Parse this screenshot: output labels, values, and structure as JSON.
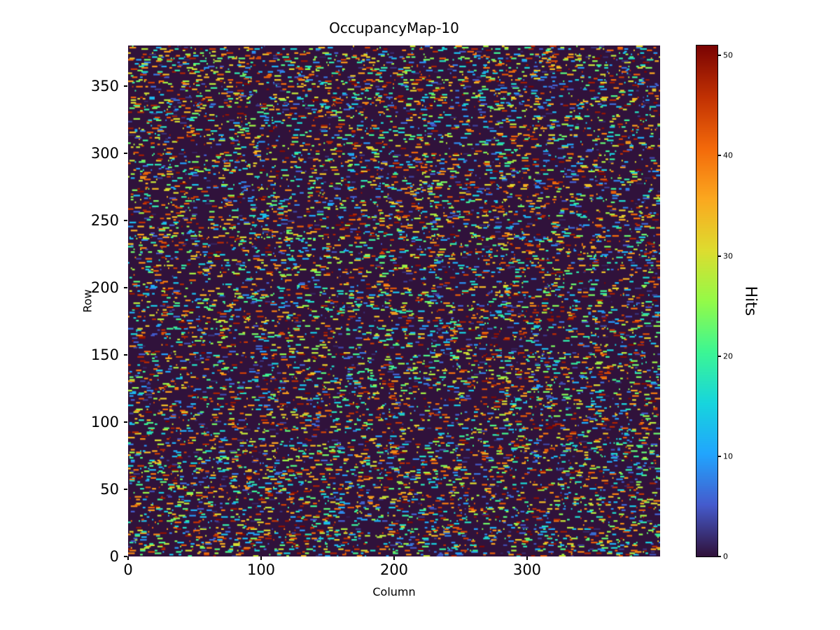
{
  "figure": {
    "title": "OccupancyMap-10",
    "xlabel": "Column",
    "ylabel": "Row",
    "colorbar_label": "Hits"
  },
  "chart_data": {
    "type": "heatmap",
    "title": "OccupancyMap-10",
    "xlabel": "Column",
    "ylabel": "Row",
    "colorbar_label": "Hits",
    "n_cols": 400,
    "n_rows": 380,
    "vmin": 0,
    "vmax": 51,
    "colormap": "turbo",
    "x_ticks": [
      0,
      100,
      200,
      300
    ],
    "y_ticks": [
      0,
      50,
      100,
      150,
      200,
      250,
      300,
      350
    ],
    "colorbar_ticks": [
      0,
      10,
      20,
      30,
      40,
      50
    ],
    "background_value": 0,
    "pattern": "sparse random horizontal dash-like hit clusters over a zero-valued dark background; hit values approximately uniform between 1 and 51",
    "hit_density": 0.07,
    "max_dash_len": 5,
    "seed": 10
  }
}
